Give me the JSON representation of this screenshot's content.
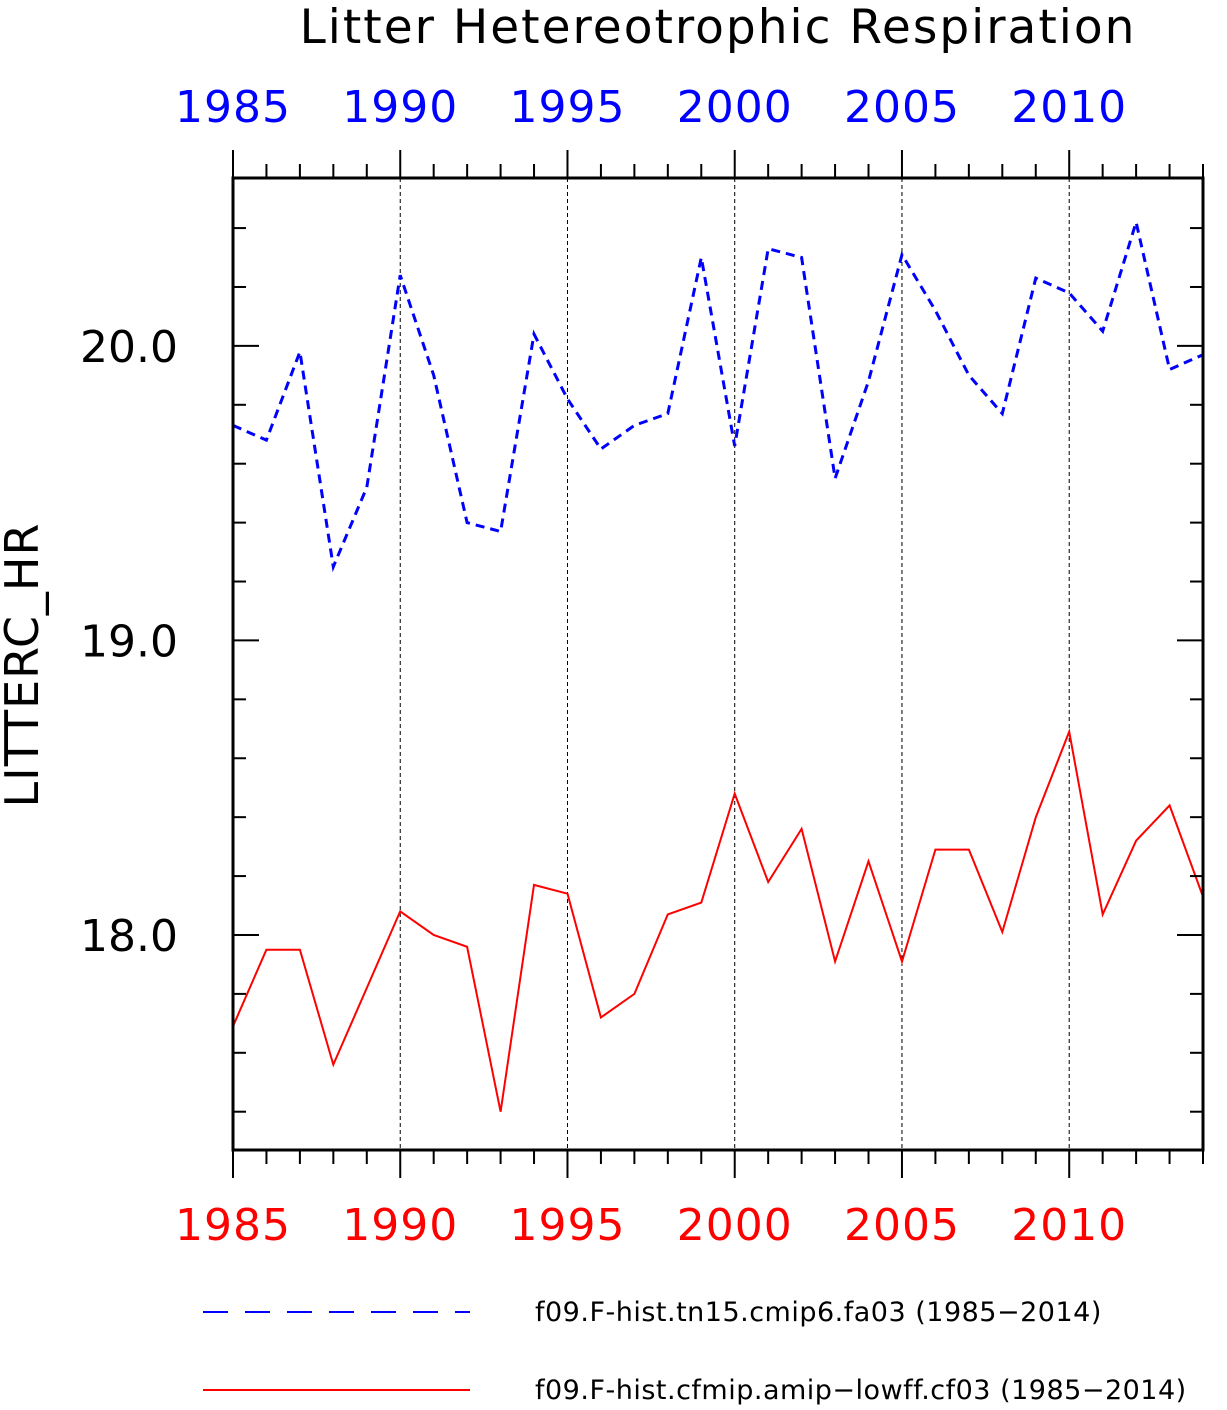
{
  "chart_data": {
    "type": "line",
    "title": "Litter Hetereotrophic Respiration",
    "ylabel": "LITTERC_HR",
    "xlabel": "",
    "xlim": [
      1985,
      2014
    ],
    "ylim": [
      17.27,
      20.57
    ],
    "x_ticks": [
      1985,
      1990,
      1995,
      2000,
      2005,
      2010
    ],
    "x_tick_labels": [
      "1985",
      "1990",
      "1995",
      "2000",
      "2005",
      "2010"
    ],
    "y_ticks": [
      18.0,
      19.0,
      20.0
    ],
    "y_tick_labels": [
      "18.0",
      "19.0",
      "20.0"
    ],
    "grid": "vertical dashed at major x ticks",
    "legend": "bottom",
    "x": [
      1985,
      1986,
      1987,
      1988,
      1989,
      1990,
      1991,
      1992,
      1993,
      1994,
      1995,
      1996,
      1997,
      1998,
      1999,
      2000,
      2001,
      2002,
      2003,
      2004,
      2005,
      2006,
      2007,
      2008,
      2009,
      2010,
      2011,
      2012,
      2013,
      2014
    ],
    "series": [
      {
        "name": "f09.F-hist.tn15.cmip6.fa03 (1985−2014)",
        "color": "#0000ff",
        "dash": "dashed",
        "axis": "top",
        "values": [
          19.73,
          19.68,
          19.98,
          19.25,
          19.52,
          20.24,
          19.9,
          19.4,
          19.37,
          20.04,
          19.82,
          19.65,
          19.73,
          19.77,
          20.3,
          19.66,
          20.33,
          20.3,
          19.55,
          19.88,
          20.31,
          20.12,
          19.9,
          19.77,
          20.23,
          20.18,
          20.05,
          20.42,
          19.92,
          19.97
        ]
      },
      {
        "name": "f09.F-hist.cfmip.amip−lowff.cf03 (1985−2014)",
        "color": "#ff0000",
        "dash": "solid",
        "axis": "bottom",
        "values": [
          17.69,
          17.95,
          17.95,
          17.56,
          17.82,
          18.08,
          18.0,
          17.96,
          17.4,
          18.17,
          18.14,
          17.72,
          17.8,
          18.07,
          18.11,
          18.48,
          18.18,
          18.36,
          17.91,
          18.25,
          17.91,
          18.29,
          18.29,
          18.01,
          18.4,
          18.69,
          18.07,
          18.32,
          18.44,
          18.13
        ]
      }
    ]
  }
}
